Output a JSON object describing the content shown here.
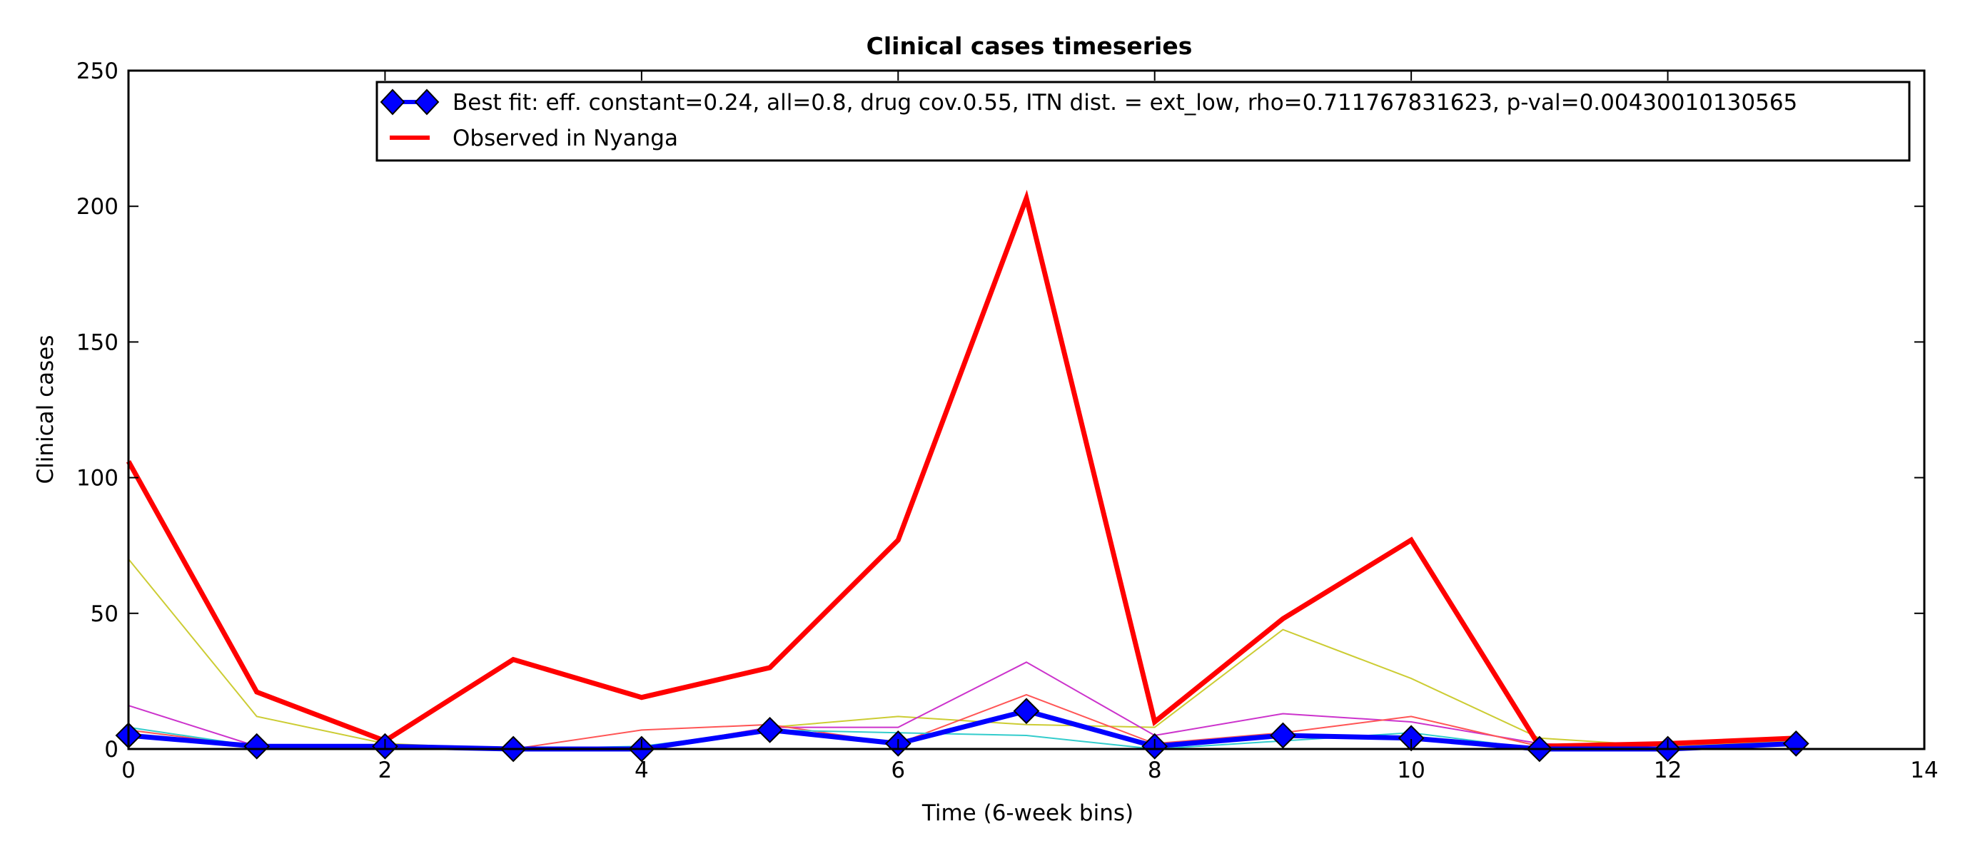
{
  "chart_data": {
    "type": "line",
    "title": "Clinical cases timeseries",
    "xlabel": "Time (6-week bins)",
    "ylabel": "Clinical cases",
    "xlim": [
      0,
      14
    ],
    "ylim": [
      0,
      250
    ],
    "xticks": [
      "0",
      "2",
      "4",
      "6",
      "8",
      "10",
      "12",
      "14"
    ],
    "yticks": [
      "0",
      "50",
      "100",
      "150",
      "200",
      "250"
    ],
    "grid": false,
    "legend_position": "top-right",
    "x": [
      0,
      1,
      2,
      3,
      4,
      5,
      6,
      7,
      8,
      9,
      10,
      11,
      12,
      13
    ],
    "series": [
      {
        "name": "Best fit: eff. constant=0.24, all=0.8, drug cov.0.55, ITN dist. = ext_low, rho=0.711767831623, p-val=0.00430010130565",
        "color": "#0000ff",
        "marker": "diamond",
        "role": "best-fit",
        "values": [
          5,
          1,
          1,
          0,
          0,
          7,
          2,
          14,
          1,
          5,
          4,
          0,
          0,
          2
        ]
      },
      {
        "name": "Observed in Nyanga",
        "color": "#ff0000",
        "role": "observed",
        "values": [
          106,
          21,
          3,
          33,
          19,
          30,
          77,
          203,
          10,
          48,
          77,
          1,
          2,
          4
        ]
      },
      {
        "color": "#cccc33",
        "role": "run",
        "values": [
          70,
          12,
          2,
          0,
          0,
          8,
          12,
          9,
          8,
          44,
          26,
          4,
          1,
          3
        ]
      },
      {
        "color": "#cc33cc",
        "role": "run",
        "values": [
          16,
          1,
          1,
          0,
          0,
          8,
          8,
          32,
          5,
          13,
          10,
          2,
          0,
          2
        ]
      },
      {
        "color": "#ff5555",
        "role": "run",
        "values": [
          7,
          1,
          1,
          0,
          7,
          9,
          2,
          20,
          2,
          6,
          12,
          1,
          0,
          2
        ]
      },
      {
        "color": "#33cccc",
        "role": "run",
        "values": [
          8,
          1,
          1,
          0,
          1,
          7,
          6,
          5,
          0,
          3,
          6,
          0,
          0,
          2
        ]
      }
    ]
  }
}
